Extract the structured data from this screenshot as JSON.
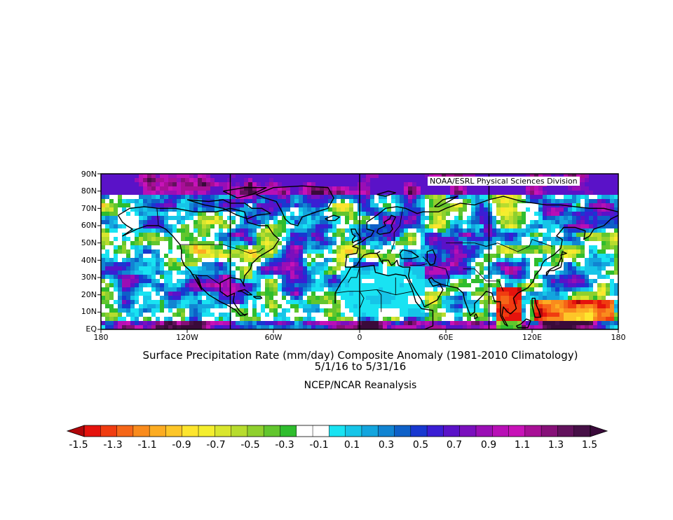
{
  "map": {
    "credit": "NOAA/ESRL Physical Sciences Division",
    "lat_labels": [
      "90N",
      "80N",
      "70N",
      "60N",
      "50N",
      "40N",
      "30N",
      "20N",
      "10N",
      "EQ"
    ],
    "lon_labels": [
      "180",
      "120W",
      "60W",
      "0",
      "60E",
      "120E",
      "180"
    ],
    "variable_title": "Surface Precipitation Rate (mm/day) Composite Anomaly (1981-2010 Climatology)",
    "date_range": "5/1/16  to 5/31/16",
    "source": "NCEP/NCAR Reanalysis",
    "lat_range": [
      0,
      90
    ],
    "lon_range": [
      -180,
      180
    ],
    "reference_meridians": [
      -90,
      0,
      90
    ]
  },
  "colorbar": {
    "labels": [
      "-1.5",
      "-1.3",
      "-1.1",
      "-0.9",
      "-0.7",
      "-0.5",
      "-0.3",
      "-0.1",
      "0.1",
      "0.3",
      "0.5",
      "0.7",
      "0.9",
      "1.1",
      "1.3",
      "1.5"
    ],
    "colors": [
      "#e5130d",
      "#f03c10",
      "#f56618",
      "#f98b1d",
      "#fcac22",
      "#fdc628",
      "#fde52e",
      "#f4ee2e",
      "#d9e62e",
      "#b7dc2e",
      "#8fd02e",
      "#62c62e",
      "#2fbd2e",
      "#ffffff",
      "#ffffff",
      "#19e3f2",
      "#16c5e8",
      "#13a5de",
      "#1184d2",
      "#0e60c8",
      "#1838d0",
      "#3a1ed4",
      "#5a12c8",
      "#7a0fbd",
      "#9a0eb5",
      "#b80fb6",
      "#c812b8",
      "#a80f96",
      "#861078",
      "#62125c",
      "#461046"
    ],
    "under_color": "#b0060a",
    "over_color": "#3a0a3a"
  },
  "colors": {
    "coast": "#000000",
    "white_rain": "#ffffff",
    "background": "#ffffff"
  }
}
